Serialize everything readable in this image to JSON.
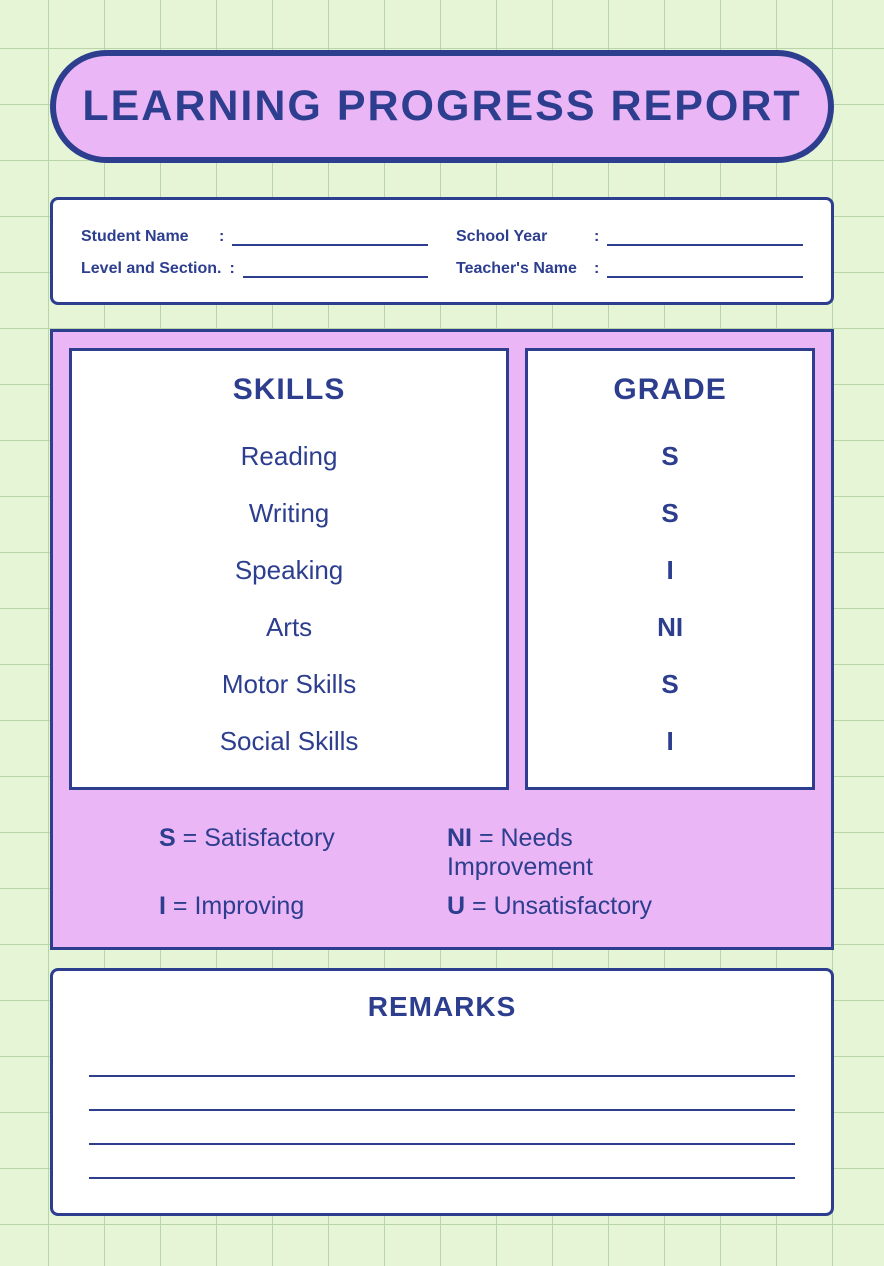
{
  "colors": {
    "background": "#e6f5d6",
    "grid_line": "#b8d4a8",
    "accent_pink": "#ebb6f5",
    "border_navy": "#2d3e8f",
    "text_navy": "#2d3e8f",
    "panel_white": "#ffffff"
  },
  "title": "LEARNING PROGRESS REPORT",
  "info_fields": [
    {
      "label": "Student Name",
      "value": ""
    },
    {
      "label": "School Year",
      "value": ""
    },
    {
      "label": "Level and Section.",
      "value": ""
    },
    {
      "label": "Teacher's Name",
      "value": ""
    }
  ],
  "grades_section": {
    "skills_header": "SKILLS",
    "grade_header": "GRADE",
    "rows": [
      {
        "skill": "Reading",
        "grade": "S"
      },
      {
        "skill": "Writing",
        "grade": "S"
      },
      {
        "skill": "Speaking",
        "grade": "I"
      },
      {
        "skill": "Arts",
        "grade": "NI"
      },
      {
        "skill": "Motor Skills",
        "grade": "S"
      },
      {
        "skill": "Social Skills",
        "grade": "I"
      }
    ],
    "legend": [
      {
        "code": "S",
        "meaning": "Satisfactory"
      },
      {
        "code": "NI",
        "meaning": "Needs Improvement"
      },
      {
        "code": "I",
        "meaning": "Improving"
      },
      {
        "code": "U",
        "meaning": "Unsatisfactory"
      }
    ]
  },
  "remarks": {
    "title": "REMARKS",
    "line_count": 4
  }
}
